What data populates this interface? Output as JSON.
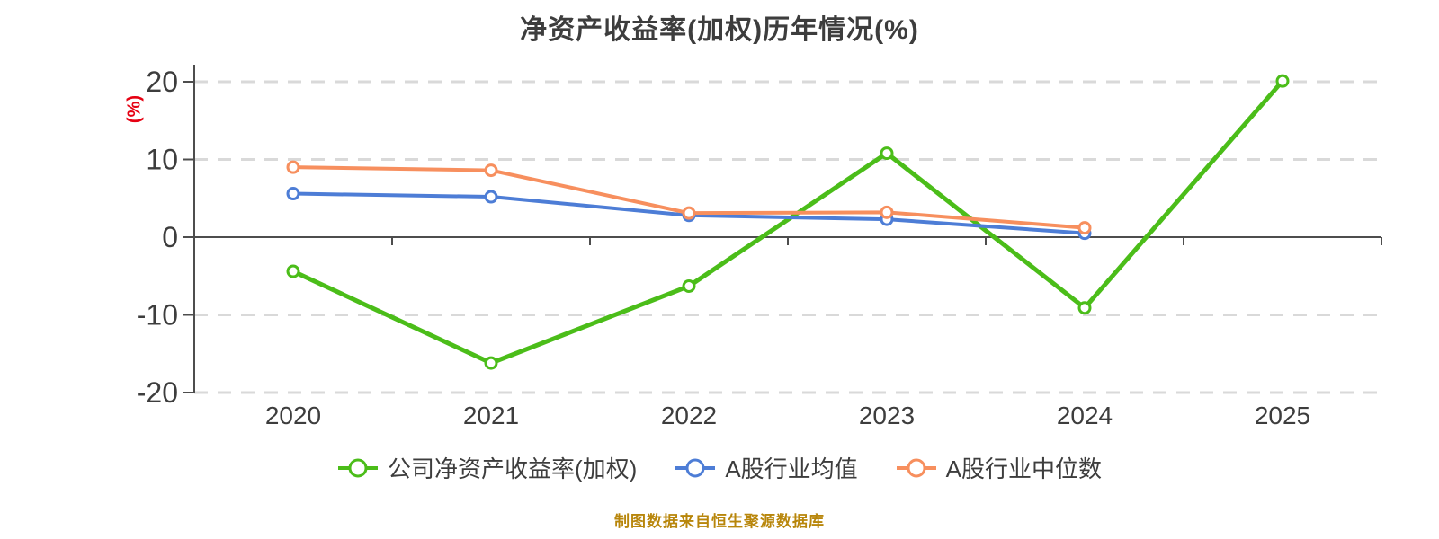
{
  "title": "净资产收益率(加权)历年情况(%)",
  "caption": "制图数据来自恒生聚源数据库",
  "chart_data": {
    "type": "line",
    "title": "净资产收益率(加权)历年情况(%)",
    "xlabel": "",
    "ylabel": "(%)",
    "ylabel_color": "#e60012",
    "ylim": [
      -20,
      20
    ],
    "yticks": [
      20,
      10,
      0,
      -10,
      -20
    ],
    "grid": "horizontal-dashed",
    "legend_position": "bottom",
    "categories": [
      "2020",
      "2021",
      "2022",
      "2023",
      "2024",
      "2025"
    ],
    "series": [
      {
        "key": "company-roe-weighted",
        "name": "公司净资产收益率(加权)",
        "color": "#4bbd19",
        "line_width": 5,
        "values": [
          -4.4,
          -16.2,
          -6.3,
          10.8,
          -9.1,
          20.1
        ]
      },
      {
        "key": "a-share-industry-mean",
        "name": "A股行业均值",
        "color": "#4d7dd6",
        "line_width": 4,
        "values": [
          5.6,
          5.2,
          2.8,
          2.3,
          0.5,
          null
        ]
      },
      {
        "key": "a-share-industry-median",
        "name": "A股行业中位数",
        "color": "#f78f5e",
        "line_width": 4,
        "values": [
          9.0,
          8.6,
          3.1,
          3.2,
          1.2,
          null
        ]
      }
    ],
    "colors": {
      "axis": "#4d4d4d",
      "gridline": "#d9d9d9",
      "tick_label": "#3d3d3d",
      "marker_fill": "#ffffff"
    }
  }
}
